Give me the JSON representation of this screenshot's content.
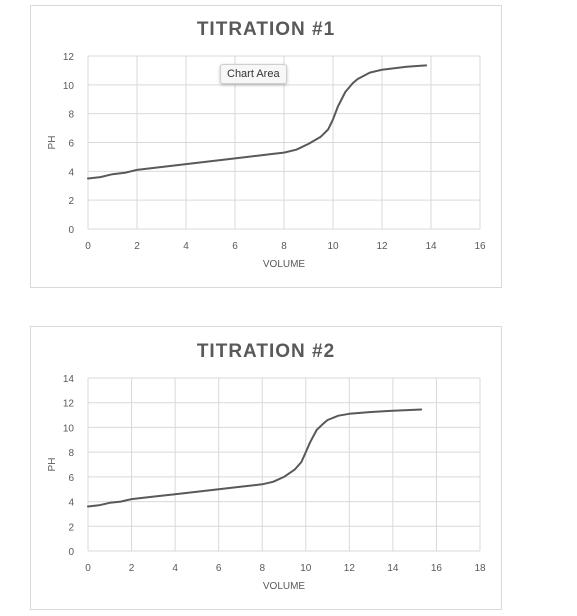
{
  "tooltip": "Chart Area",
  "chart_data": [
    {
      "type": "line",
      "title": "TITRATION #1",
      "xlabel": "VOLUME",
      "ylabel": "PH",
      "xlim": [
        0,
        16
      ],
      "ylim": [
        0,
        12
      ],
      "xticks": [
        "0",
        "2",
        "4",
        "6",
        "8",
        "10",
        "12",
        "14",
        "16"
      ],
      "yticks": [
        "0",
        "2",
        "4",
        "6",
        "8",
        "10",
        "12"
      ],
      "grid": true,
      "line_color": "#595959",
      "series": [
        {
          "x": [
            0,
            0.5,
            1,
            1.5,
            2,
            3,
            4,
            5,
            6,
            7,
            7.5,
            8,
            8.5,
            9,
            9.5,
            9.8,
            10,
            10.2,
            10.5,
            10.8,
            11,
            11.5,
            12,
            12.5,
            13,
            13.8
          ],
          "y": [
            3.5,
            3.6,
            3.8,
            3.9,
            4.1,
            4.3,
            4.5,
            4.7,
            4.9,
            5.1,
            5.2,
            5.3,
            5.5,
            5.9,
            6.4,
            6.9,
            7.6,
            8.5,
            9.5,
            10.1,
            10.4,
            10.85,
            11.05,
            11.15,
            11.25,
            11.35
          ]
        }
      ]
    },
    {
      "type": "line",
      "title": "TITRATION #2",
      "xlabel": "VOLUME",
      "ylabel": "PH",
      "xlim": [
        0,
        18
      ],
      "ylim": [
        0,
        14
      ],
      "xticks": [
        "0",
        "2",
        "4",
        "6",
        "8",
        "10",
        "12",
        "14",
        "16",
        "18"
      ],
      "yticks": [
        "0",
        "2",
        "4",
        "6",
        "8",
        "10",
        "12",
        "14"
      ],
      "grid": true,
      "line_color": "#595959",
      "series": [
        {
          "x": [
            0,
            0.5,
            1,
            1.5,
            2,
            3,
            4,
            5,
            6,
            7,
            8,
            8.5,
            9,
            9.5,
            9.8,
            10,
            10.2,
            10.5,
            10.8,
            11,
            11.5,
            12,
            13,
            14,
            15.3
          ],
          "y": [
            3.6,
            3.7,
            3.9,
            4.0,
            4.2,
            4.4,
            4.6,
            4.8,
            5.0,
            5.2,
            5.4,
            5.6,
            6.0,
            6.6,
            7.2,
            8.0,
            8.8,
            9.8,
            10.3,
            10.6,
            10.95,
            11.1,
            11.25,
            11.35,
            11.45
          ]
        }
      ]
    }
  ]
}
